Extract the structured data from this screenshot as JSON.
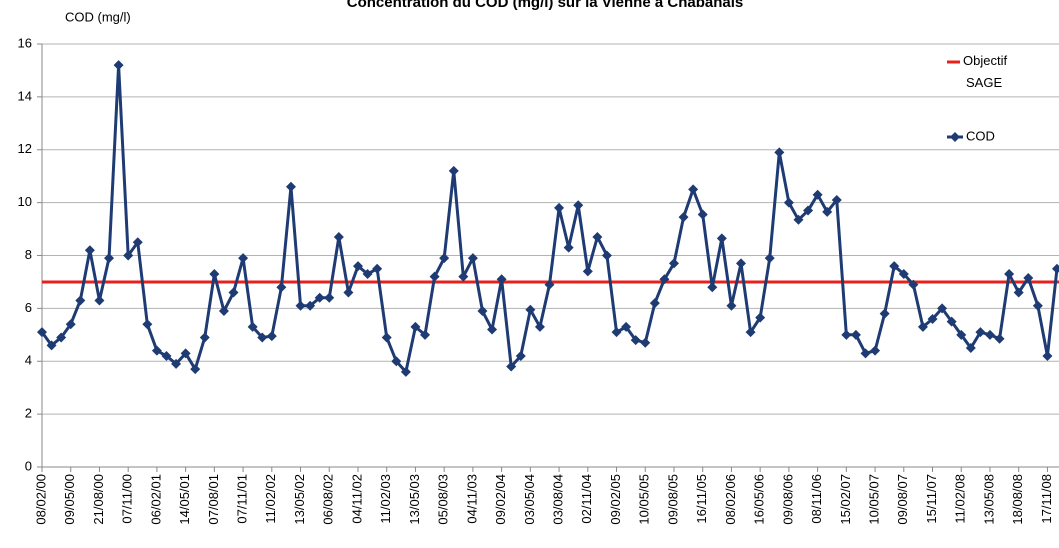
{
  "chart_data": {
    "type": "line",
    "title": "Concentration du COD (mg/l) sur la Vienne à Chabanais",
    "y_label": "COD (mg/l)",
    "categories": [
      "08/02/00",
      null,
      null,
      "09/05/00",
      null,
      null,
      "21/08/00",
      null,
      null,
      "07/11/00",
      null,
      null,
      "06/02/01",
      null,
      null,
      "14/05/01",
      null,
      null,
      "07/08/01",
      null,
      null,
      "07/11/01",
      null,
      null,
      "11/02/02",
      null,
      null,
      "13/05/02",
      null,
      null,
      "06/08/02",
      null,
      null,
      "04/11/02",
      null,
      null,
      "11/02/03",
      null,
      null,
      "13/05/03",
      null,
      null,
      "05/08/03",
      null,
      null,
      "04/11/03",
      null,
      null,
      "09/02/04",
      null,
      null,
      "03/05/04",
      null,
      null,
      "03/08/04",
      null,
      null,
      "02/11/04",
      null,
      null,
      "09/02/05",
      null,
      null,
      "10/05/05",
      null,
      null,
      "09/08/05",
      null,
      null,
      "16/11/05",
      null,
      null,
      "08/02/06",
      null,
      null,
      "16/05/06",
      null,
      null,
      "09/08/06",
      null,
      null,
      "08/11/06",
      null,
      null,
      "15/02/07",
      null,
      null,
      "10/05/07",
      null,
      null,
      "09/08/07",
      null,
      null,
      "15/11/07",
      null,
      null,
      "11/02/08",
      null,
      null,
      "13/05/08",
      null,
      null,
      "18/08/08",
      null,
      null,
      "17/11/08",
      null
    ],
    "series": [
      {
        "name": "COD",
        "color": "#1f3b73",
        "values": [
          5.1,
          4.6,
          4.9,
          5.4,
          6.3,
          8.2,
          6.3,
          7.9,
          15.2,
          8.0,
          8.5,
          5.4,
          4.4,
          4.2,
          3.9,
          4.3,
          3.7,
          4.9,
          7.3,
          5.9,
          6.6,
          7.9,
          5.3,
          4.9,
          4.95,
          6.8,
          10.6,
          6.1,
          6.1,
          6.4,
          6.4,
          8.7,
          6.6,
          7.6,
          7.3,
          7.5,
          4.9,
          4.0,
          3.6,
          5.3,
          5.0,
          7.2,
          7.9,
          11.2,
          7.2,
          7.9,
          5.9,
          5.2,
          7.1,
          3.8,
          4.2,
          5.95,
          5.3,
          6.9,
          9.8,
          8.3,
          9.9,
          7.4,
          8.7,
          8.0,
          5.1,
          5.3,
          4.8,
          4.7,
          6.2,
          7.1,
          7.7,
          9.45,
          10.5,
          9.55,
          6.8,
          8.65,
          6.1,
          7.7,
          5.1,
          5.65,
          7.9,
          11.9,
          10.0,
          9.35,
          9.7,
          10.3,
          9.65,
          10.1,
          5.0,
          5.0,
          4.3,
          4.4,
          5.8,
          7.6,
          7.3,
          6.9,
          5.3,
          5.6,
          6.0,
          5.5,
          5.0,
          4.5,
          5.1,
          5.0,
          4.85,
          7.3,
          6.6,
          7.15,
          6.1,
          4.2,
          7.5
        ]
      }
    ],
    "target": {
      "name": "Objectif SAGE",
      "value": 7,
      "color": "#e8201c"
    },
    "ylim": [
      0,
      16
    ],
    "yticks": [
      0,
      2,
      4,
      6,
      8,
      10,
      12,
      14,
      16
    ],
    "grid": true,
    "legend": "top-right"
  }
}
